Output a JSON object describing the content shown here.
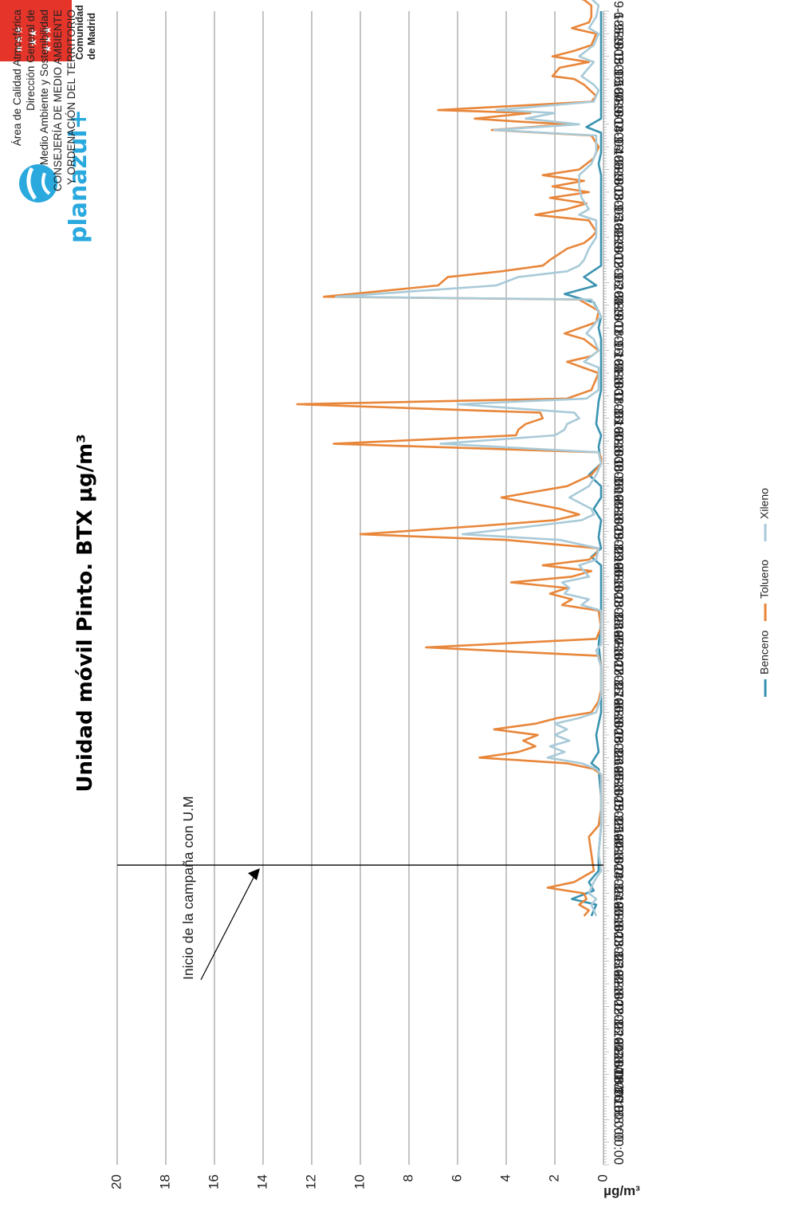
{
  "header": {
    "agency_line_1": "Comunidad",
    "agency_line_2": "de Madrid",
    "plan_brand": "planazul+",
    "org_lines": [
      "Área de Calidad Atmosférica",
      "Dirección General de",
      "Medio Ambiente y Sostenibilidad",
      "CONSEJERÍA DE MEDIO AMBIENTE",
      "Y ORDENACIÓN DEL TERRITORIO"
    ]
  },
  "colors": {
    "benceno": "#3a93b0",
    "tolueno": "#e8863a",
    "xileno": "#a9cad8",
    "flag_red": "#e5352b",
    "brand_blue": "#2aa9df"
  },
  "chart_data": {
    "type": "line",
    "title": "Unidad móvil Pinto. BTX µg/m³",
    "ylabel": "µg/m³",
    "xlabel": "",
    "ylim": [
      0,
      20
    ],
    "yticks": [
      0,
      2,
      4,
      6,
      8,
      10,
      12,
      14,
      16,
      18,
      20
    ],
    "grid": true,
    "legend_position": "bottom",
    "x_tick_labels": [
      "21/08/2018 0:00:00",
      "21-8-18 8:00",
      "21-8-18 16:00",
      "22-8-18 0:00",
      "22-8-18 8:00",
      "22-8-18 16:00",
      "23-8-18 0:00",
      "23-8-18 8:00",
      "23-8-18 16:00",
      "24-8-18 0:00",
      "24-8-18 8:00",
      "24-8-18 16:00",
      "25-8-18 0:00",
      "25-8-18 8:00",
      "25-8-18 16:00",
      "26-8-18 0:00",
      "26-8-18 8:00",
      "26-8-18 16:00",
      "27-8-18 0:00",
      "27-8-18 8:00",
      "27-8-18 16:00",
      "28-8-18 0:00",
      "28-8-18 8:00",
      "28-8-18 16:00",
      "29-8-18 0:00",
      "29-8-18 8:00",
      "29-8-18 16:00",
      "30-8-18 0:00",
      "30-8-18 8:00",
      "30-8-18 16:00",
      "31-8-18 0:00",
      "31-8-18 8:00",
      "31-8-18 16:00",
      "1-9-18 0:00",
      "1-9-18 8:00",
      "1-9-18 16:00",
      "2-9-18 0:00",
      "2-9-18 8:00",
      "2-9-18 16:00",
      "3-9-18 0:00",
      "3-9-18 8:00",
      "3-9-18 16:00",
      "4-9-18 0:00",
      "4-9-18 8:00",
      "4-9-18 16:00",
      "5-9-18 0:00",
      "5-9-18 8:00",
      "5-9-18 16:00",
      "6-9-18 0:00",
      "6-9-18 8:00"
    ],
    "x_units": "hours since 21/08/2018 0:00",
    "annotation": {
      "text": "Inicio de la campaña con U.M",
      "x_tick": "25-8-18 8:00"
    },
    "series": [
      {
        "name": "Benceno",
        "color_key": "benceno",
        "points": [
          [
            88,
            0.5
          ],
          [
            92,
            0.3
          ],
          [
            94,
            1.3
          ],
          [
            97,
            0.4
          ],
          [
            100,
            0.6
          ],
          [
            104,
            0.2
          ],
          [
            110,
            0.2
          ],
          [
            120,
            0.1
          ],
          [
            130,
            0.1
          ],
          [
            140,
            0.2
          ],
          [
            142,
            0.5
          ],
          [
            146,
            0.2
          ],
          [
            152,
            0.3
          ],
          [
            160,
            0.1
          ],
          [
            166,
            0.1
          ],
          [
            176,
            0.1
          ],
          [
            184,
            0.2
          ],
          [
            192,
            0.1
          ],
          [
            200,
            0.1
          ],
          [
            212,
            0.1
          ],
          [
            215,
            0.5
          ],
          [
            218,
            0.1
          ],
          [
            222,
            0.2
          ],
          [
            228,
            0.1
          ],
          [
            232,
            0.4
          ],
          [
            236,
            0.1
          ],
          [
            240,
            0.1
          ],
          [
            244,
            0.6
          ],
          [
            248,
            0.1
          ],
          [
            254,
            0.2
          ],
          [
            258,
            0.1
          ],
          [
            262,
            0.3
          ],
          [
            270,
            0.2
          ],
          [
            274,
            0.1
          ],
          [
            284,
            0.1
          ],
          [
            292,
            0.1
          ],
          [
            296,
            0.2
          ],
          [
            300,
            0.1
          ],
          [
            305,
            0.4
          ],
          [
            308,
            1.6
          ],
          [
            311,
            0.3
          ],
          [
            314,
            0.8
          ],
          [
            318,
            0.1
          ],
          [
            330,
            0.1
          ],
          [
            340,
            0.1
          ],
          [
            350,
            0.1
          ],
          [
            354,
            0.2
          ],
          [
            358,
            0.1
          ],
          [
            362,
            0.1
          ],
          [
            365,
            0.1
          ],
          [
            367,
            0.7
          ],
          [
            370,
            0.1
          ],
          [
            376,
            0.1
          ],
          [
            384,
            0.1
          ],
          [
            392,
            0.1
          ],
          [
            400,
            0.1
          ],
          [
            408,
            0.1
          ]
        ]
      },
      {
        "name": "Tolueno",
        "color_key": "tolueno",
        "points": [
          [
            88,
            0.8
          ],
          [
            90,
            0.6
          ],
          [
            92,
            1.0
          ],
          [
            94,
            0.7
          ],
          [
            96,
            0.8
          ],
          [
            98,
            2.3
          ],
          [
            100,
            1.2
          ],
          [
            104,
            0.4
          ],
          [
            110,
            0.5
          ],
          [
            116,
            0.6
          ],
          [
            120,
            0.2
          ],
          [
            126,
            0.1
          ],
          [
            132,
            0.1
          ],
          [
            138,
            0.1
          ],
          [
            140,
            0.4
          ],
          [
            142,
            1.5
          ],
          [
            144,
            5.1
          ],
          [
            146,
            3.5
          ],
          [
            148,
            2.8
          ],
          [
            150,
            3.3
          ],
          [
            152,
            2.7
          ],
          [
            154,
            4.5
          ],
          [
            156,
            2.8
          ],
          [
            158,
            1.9
          ],
          [
            160,
            0.5
          ],
          [
            164,
            0.2
          ],
          [
            168,
            0.1
          ],
          [
            176,
            0.1
          ],
          [
            180,
            0.2
          ],
          [
            183,
            7.3
          ],
          [
            186,
            0.3
          ],
          [
            190,
            0.1
          ],
          [
            196,
            0.2
          ],
          [
            198,
            1.7
          ],
          [
            200,
            1.3
          ],
          [
            202,
            2.2
          ],
          [
            204,
            1.5
          ],
          [
            206,
            3.8
          ],
          [
            208,
            1.3
          ],
          [
            210,
            0.5
          ],
          [
            212,
            2.5
          ],
          [
            214,
            0.6
          ],
          [
            216,
            0.3
          ],
          [
            218,
            0.2
          ],
          [
            221,
            4.0
          ],
          [
            223,
            10.0
          ],
          [
            226,
            5.0
          ],
          [
            228,
            2.0
          ],
          [
            230,
            1.0
          ],
          [
            232,
            1.8
          ],
          [
            236,
            4.2
          ],
          [
            240,
            1.5
          ],
          [
            244,
            0.5
          ],
          [
            246,
            0.3
          ],
          [
            248,
            0.1
          ],
          [
            250,
            0.1
          ],
          [
            252,
            0.2
          ],
          [
            255,
            11.1
          ],
          [
            258,
            3.6
          ],
          [
            260,
            3.5
          ],
          [
            262,
            3.2
          ],
          [
            264,
            2.5
          ],
          [
            266,
            2.6
          ],
          [
            269,
            12.6
          ],
          [
            271,
            1.5
          ],
          [
            274,
            0.5
          ],
          [
            280,
            0.2
          ],
          [
            284,
            1.5
          ],
          [
            286,
            0.5
          ],
          [
            288,
            0.2
          ],
          [
            292,
            0.8
          ],
          [
            294,
            1.6
          ],
          [
            298,
            0.3
          ],
          [
            302,
            0.2
          ],
          [
            306,
            1.0
          ],
          [
            307,
            11.5
          ],
          [
            311,
            6.8
          ],
          [
            314,
            6.4
          ],
          [
            316,
            4.2
          ],
          [
            318,
            2.5
          ],
          [
            320,
            2.2
          ],
          [
            324,
            1.5
          ],
          [
            326,
            0.8
          ],
          [
            328,
            0.5
          ],
          [
            330,
            0.3
          ],
          [
            334,
            0.6
          ],
          [
            336,
            2.8
          ],
          [
            338,
            1.5
          ],
          [
            340,
            0.7
          ],
          [
            342,
            2.2
          ],
          [
            344,
            0.6
          ],
          [
            346,
            2.1
          ],
          [
            348,
            0.8
          ],
          [
            350,
            2.5
          ],
          [
            352,
            1.0
          ],
          [
            356,
            0.4
          ],
          [
            360,
            0.2
          ],
          [
            364,
            0.5
          ],
          [
            366,
            4.6
          ],
          [
            368,
            1.5
          ],
          [
            369,
            3.6
          ],
          [
            370,
            5.3
          ],
          [
            372,
            3.0
          ],
          [
            373,
            6.8
          ],
          [
            376,
            0.5
          ],
          [
            378,
            0.3
          ],
          [
            382,
            0.8
          ],
          [
            384,
            1.2
          ],
          [
            385,
            2.1
          ],
          [
            388,
            1.8
          ],
          [
            390,
            0.6
          ],
          [
            392,
            2.1
          ],
          [
            394,
            1.2
          ],
          [
            396,
            0.5
          ],
          [
            400,
            0.3
          ],
          [
            402,
            1.3
          ],
          [
            404,
            0.6
          ],
          [
            406,
            0.5
          ],
          [
            410,
            0.5
          ],
          [
            412,
            0.8
          ],
          [
            414,
            1.5
          ],
          [
            416,
            1.2
          ],
          [
            418,
            0.5
          ]
        ]
      },
      {
        "name": "Xileno",
        "color_key": "xileno",
        "points": [
          [
            88,
            0.3
          ],
          [
            92,
            0.5
          ],
          [
            94,
            0.3
          ],
          [
            96,
            0.6
          ],
          [
            100,
            0.4
          ],
          [
            104,
            0.1
          ],
          [
            110,
            0.2
          ],
          [
            120,
            0.1
          ],
          [
            130,
            0.1
          ],
          [
            138,
            0.1
          ],
          [
            140,
            0.3
          ],
          [
            142,
            0.9
          ],
          [
            144,
            2.3
          ],
          [
            146,
            1.6
          ],
          [
            148,
            2.2
          ],
          [
            150,
            1.4
          ],
          [
            152,
            2.0
          ],
          [
            154,
            1.5
          ],
          [
            156,
            2.0
          ],
          [
            158,
            1.0
          ],
          [
            160,
            0.3
          ],
          [
            166,
            0.1
          ],
          [
            176,
            0.1
          ],
          [
            182,
            0.3
          ],
          [
            184,
            0.1
          ],
          [
            196,
            0.1
          ],
          [
            198,
            0.9
          ],
          [
            200,
            0.6
          ],
          [
            202,
            1.6
          ],
          [
            204,
            1.4
          ],
          [
            206,
            1.7
          ],
          [
            208,
            0.6
          ],
          [
            212,
            1.0
          ],
          [
            214,
            0.3
          ],
          [
            218,
            0.2
          ],
          [
            221,
            1.8
          ],
          [
            223,
            5.8
          ],
          [
            226,
            2.8
          ],
          [
            228,
            0.9
          ],
          [
            230,
            0.4
          ],
          [
            232,
            0.5
          ],
          [
            236,
            1.4
          ],
          [
            240,
            0.6
          ],
          [
            244,
            0.3
          ],
          [
            248,
            0.1
          ],
          [
            252,
            0.2
          ],
          [
            255,
            6.7
          ],
          [
            258,
            2.0
          ],
          [
            260,
            1.6
          ],
          [
            262,
            1.5
          ],
          [
            264,
            1.0
          ],
          [
            266,
            1.2
          ],
          [
            269,
            6.0
          ],
          [
            271,
            0.7
          ],
          [
            274,
            0.2
          ],
          [
            282,
            0.2
          ],
          [
            284,
            0.8
          ],
          [
            288,
            0.2
          ],
          [
            292,
            0.4
          ],
          [
            294,
            0.7
          ],
          [
            300,
            0.1
          ],
          [
            306,
            0.5
          ],
          [
            307,
            11.0
          ],
          [
            311,
            4.4
          ],
          [
            314,
            3.5
          ],
          [
            316,
            1.5
          ],
          [
            318,
            1.0
          ],
          [
            320,
            0.8
          ],
          [
            324,
            0.6
          ],
          [
            328,
            0.3
          ],
          [
            334,
            0.3
          ],
          [
            336,
            1.0
          ],
          [
            338,
            0.6
          ],
          [
            342,
            0.9
          ],
          [
            346,
            1.0
          ],
          [
            350,
            1.0
          ],
          [
            354,
            0.5
          ],
          [
            358,
            0.3
          ],
          [
            364,
            0.3
          ],
          [
            366,
            4.5
          ],
          [
            368,
            1.0
          ],
          [
            370,
            3.2
          ],
          [
            372,
            2.0
          ],
          [
            373,
            4.4
          ],
          [
            376,
            0.4
          ],
          [
            380,
            0.2
          ],
          [
            382,
            0.4
          ],
          [
            385,
            0.9
          ],
          [
            390,
            0.4
          ],
          [
            392,
            1.0
          ],
          [
            396,
            0.4
          ],
          [
            400,
            0.2
          ],
          [
            402,
            0.6
          ],
          [
            406,
            0.3
          ],
          [
            410,
            0.2
          ],
          [
            414,
            0.7
          ],
          [
            418,
            0.6
          ]
        ]
      }
    ]
  }
}
